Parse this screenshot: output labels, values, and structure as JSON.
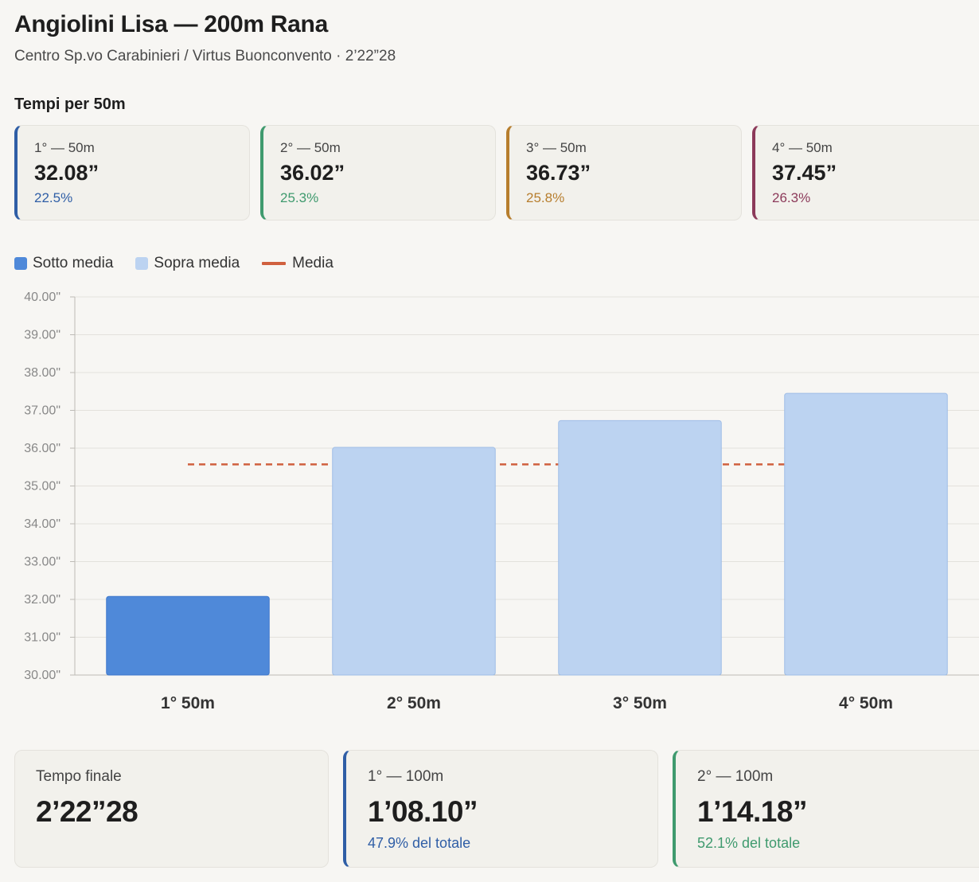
{
  "header": {
    "title": "Angiolini Lisa — 200m Rana",
    "subtitle": "Centro Sp.vo Carabinieri / Virtus Buonconvento · 2’22”28"
  },
  "splits_section": {
    "title": "Tempi per 50m",
    "cards": [
      {
        "label": "1° — 50m",
        "value": "32.08”",
        "percent": "22.5%",
        "color": "#2f5ea6"
      },
      {
        "label": "2° — 50m",
        "value": "36.02”",
        "percent": "25.3%",
        "color": "#3f9a6e"
      },
      {
        "label": "3° — 50m",
        "value": "36.73”",
        "percent": "25.8%",
        "color": "#b77e2e"
      },
      {
        "label": "4° — 50m",
        "value": "37.45”",
        "percent": "26.3%",
        "color": "#8c3a5a"
      }
    ]
  },
  "legend": {
    "below": "Sotto media",
    "above": "Sopra media",
    "mean": "Media",
    "below_color": "#4f89d9",
    "above_color": "#bcd3f1",
    "mean_color": "#d0603e"
  },
  "chart_data": {
    "type": "bar",
    "categories": [
      "1° 50m",
      "2° 50m",
      "3° 50m",
      "4° 50m"
    ],
    "values": [
      32.08,
      36.02,
      36.73,
      37.45
    ],
    "mean": 35.57,
    "ylim": [
      30,
      40
    ],
    "yticks": [
      "30.00\"",
      "31.00\"",
      "32.00\"",
      "33.00\"",
      "34.00\"",
      "35.00\"",
      "36.00\"",
      "37.00\"",
      "38.00\"",
      "39.00\"",
      "40.00\""
    ],
    "grid": true,
    "legend_position": "top-left"
  },
  "summary": {
    "final": {
      "label": "Tempo finale",
      "value": "2’22”28"
    },
    "first_half": {
      "label": "1° — 100m",
      "value": "1’08.10”",
      "sub": "47.9% del totale",
      "color": "#2f5ea6"
    },
    "second_half": {
      "label": "2° — 100m",
      "value": "1’14.18”",
      "sub": "52.1% del totale",
      "color": "#3f9a6e"
    }
  }
}
